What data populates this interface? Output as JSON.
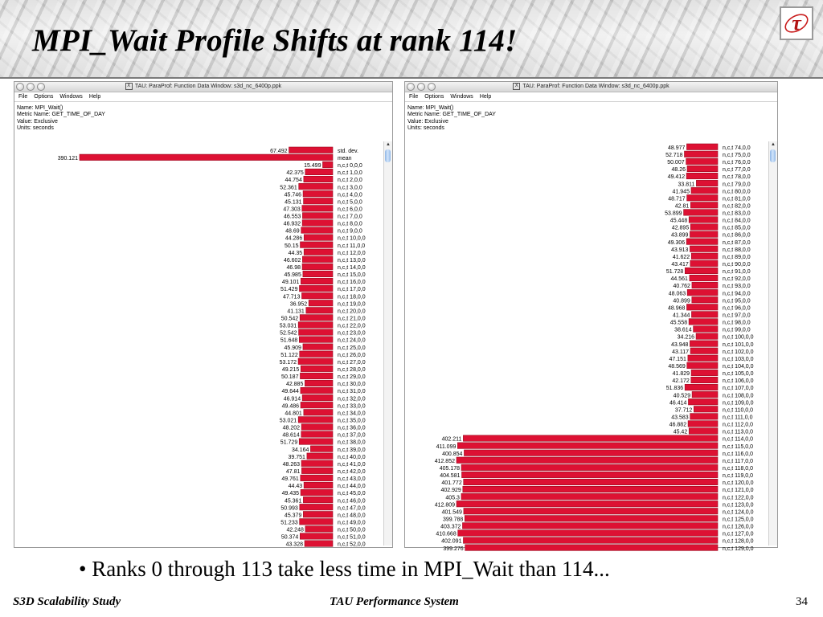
{
  "slide": {
    "title": "MPI_Wait Profile Shifts at rank 114!",
    "caption": "• Ranks 0 through 113 take less time in MPI_Wait than 114...",
    "footer_left": "S3D Scalability Study",
    "footer_center": "TAU Performance System",
    "page_number": "34",
    "logo_glyph": "τ"
  },
  "colors": {
    "bar": "#dd1133",
    "bar_dark": "#9a0a1f"
  },
  "windows": [
    {
      "title": "TAU: ParaProf: Function Data Window: s3d_nc_6400p.ppk",
      "menu": [
        "File",
        "Options",
        "Windows",
        "Help"
      ],
      "info": [
        "Name: MPI_Wait()",
        "Metric Name: GET_TIME_OF_DAY",
        "Value: Exclusive",
        "Units: seconds"
      ]
    },
    {
      "title": "TAU: ParaProf: Function Data Window: s3d_nc_6400p.ppk",
      "menu": [
        "File",
        "Options",
        "Windows",
        "Help"
      ],
      "info": [
        "Name: MPI_Wait()",
        "Metric Name: GET_TIME_OF_DAY",
        "Value: Exclusive",
        "Units: seconds"
      ]
    }
  ],
  "chart_data": [
    {
      "type": "bar",
      "orientation": "horizontal",
      "categories": [
        "std. dev.",
        "mean",
        "n,c,t 0,0,0",
        "n,c,t 1,0,0",
        "n,c,t 2,0,0",
        "n,c,t 3,0,0",
        "n,c,t 4,0,0",
        "n,c,t 5,0,0",
        "n,c,t 6,0,0",
        "n,c,t 7,0,0",
        "n,c,t 8,0,0",
        "n,c,t 9,0,0",
        "n,c,t 10,0,0",
        "n,c,t 11,0,0",
        "n,c,t 12,0,0",
        "n,c,t 13,0,0",
        "n,c,t 14,0,0",
        "n,c,t 15,0,0",
        "n,c,t 16,0,0",
        "n,c,t 17,0,0",
        "n,c,t 18,0,0",
        "n,c,t 19,0,0",
        "n,c,t 20,0,0",
        "n,c,t 21,0,0",
        "n,c,t 22,0,0",
        "n,c,t 23,0,0",
        "n,c,t 24,0,0",
        "n,c,t 25,0,0",
        "n,c,t 26,0,0",
        "n,c,t 27,0,0",
        "n,c,t 28,0,0",
        "n,c,t 29,0,0",
        "n,c,t 30,0,0",
        "n,c,t 31,0,0",
        "n,c,t 32,0,0",
        "n,c,t 33,0,0",
        "n,c,t 34,0,0",
        "n,c,t 35,0,0",
        "n,c,t 36,0,0",
        "n,c,t 37,0,0",
        "n,c,t 38,0,0",
        "n,c,t 39,0,0",
        "n,c,t 40,0,0",
        "n,c,t 41,0,0",
        "n,c,t 42,0,0",
        "n,c,t 43,0,0",
        "n,c,t 44,0,0",
        "n,c,t 45,0,0",
        "n,c,t 46,0,0",
        "n,c,t 47,0,0",
        "n,c,t 48,0,0",
        "n,c,t 49,0,0",
        "n,c,t 50,0,0",
        "n,c,t 51,0,0",
        "n,c,t 52,0,0"
      ],
      "values": [
        67.492,
        390.121,
        15.499,
        42.375,
        44.754,
        52.361,
        45.746,
        45.131,
        47.303,
        46.553,
        46.932,
        48.69,
        44.286,
        50.15,
        44.35,
        46.602,
        46.98,
        45.985,
        49.101,
        51.429,
        47.713,
        36.952,
        41.131,
        50.542,
        53.031,
        52.542,
        51.648,
        45.909,
        51.122,
        53.172,
        49.215,
        50.187,
        42.885,
        49.644,
        46.914,
        49.486,
        44.801,
        53.021,
        48.202,
        48.614,
        51.729,
        34.164,
        39.751,
        48.263,
        47.81,
        49.761,
        44.43,
        49.435,
        45.361,
        50.993,
        45.379,
        51.233,
        42.248,
        50.374,
        43.328
      ],
      "xmax": 390.121
    },
    {
      "type": "bar",
      "orientation": "horizontal",
      "categories": [
        "n,c,t 74,0,0",
        "n,c,t 75,0,0",
        "n,c,t 76,0,0",
        "n,c,t 77,0,0",
        "n,c,t 78,0,0",
        "n,c,t 79,0,0",
        "n,c,t 80,0,0",
        "n,c,t 81,0,0",
        "n,c,t 82,0,0",
        "n,c,t 83,0,0",
        "n,c,t 84,0,0",
        "n,c,t 85,0,0",
        "n,c,t 86,0,0",
        "n,c,t 87,0,0",
        "n,c,t 88,0,0",
        "n,c,t 89,0,0",
        "n,c,t 90,0,0",
        "n,c,t 91,0,0",
        "n,c,t 92,0,0",
        "n,c,t 93,0,0",
        "n,c,t 94,0,0",
        "n,c,t 95,0,0",
        "n,c,t 96,0,0",
        "n,c,t 97,0,0",
        "n,c,t 98,0,0",
        "n,c,t 99,0,0",
        "n,c,t 100,0,0",
        "n,c,t 101,0,0",
        "n,c,t 102,0,0",
        "n,c,t 103,0,0",
        "n,c,t 104,0,0",
        "n,c,t 105,0,0",
        "n,c,t 106,0,0",
        "n,c,t 107,0,0",
        "n,c,t 108,0,0",
        "n,c,t 109,0,0",
        "n,c,t 110,0,0",
        "n,c,t 111,0,0",
        "n,c,t 112,0,0",
        "n,c,t 113,0,0",
        "n,c,t 114,0,0",
        "n,c,t 115,0,0",
        "n,c,t 116,0,0",
        "n,c,t 117,0,0",
        "n,c,t 118,0,0",
        "n,c,t 119,0,0",
        "n,c,t 120,0,0",
        "n,c,t 121,0,0",
        "n,c,t 122,0,0",
        "n,c,t 123,0,0",
        "n,c,t 124,0,0",
        "n,c,t 125,0,0",
        "n,c,t 126,0,0",
        "n,c,t 127,0,0",
        "n,c,t 128,0,0",
        "n,c,t 129,0,0"
      ],
      "values": [
        48.977,
        52.718,
        50.007,
        48.26,
        49.412,
        33.811,
        41.945,
        48.717,
        42.81,
        53.899,
        45.448,
        42.895,
        43.899,
        49.306,
        43.913,
        41.622,
        43.417,
        51.728,
        44.561,
        40.762,
        48.063,
        40.899,
        48.968,
        41.344,
        45.558,
        38.614,
        34.216,
        43.948,
        43.117,
        47.151,
        48.569,
        41.829,
        42.172,
        51.836,
        40.529,
        46.414,
        37.712,
        43.583,
        46.882,
        45.42,
        402.211,
        411.099,
        400.854,
        412.852,
        405.178,
        404.581,
        401.772,
        402.929,
        405.3,
        412.809,
        401.549,
        399.788,
        403.372,
        410.668,
        402.091,
        399.276
      ],
      "xmax": 412.852
    }
  ]
}
